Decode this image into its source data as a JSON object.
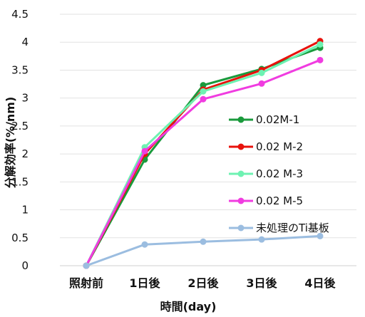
{
  "chart_data": {
    "type": "line",
    "title": "",
    "xlabel": "時間(day)",
    "ylabel": "分解効率(%/nm)",
    "categories": [
      "照射前",
      "1日後",
      "2日後",
      "3日後",
      "4日後"
    ],
    "ylim": [
      0,
      4.5
    ],
    "yticks": [
      "0",
      "0.5",
      "1",
      "1.5",
      "2",
      "2.5",
      "3",
      "3.5",
      "4",
      "4.5"
    ],
    "grid": true,
    "legend_position": "right",
    "series": [
      {
        "name": "0.02M-1",
        "color": "#1a9a3c",
        "values": [
          0,
          1.9,
          3.23,
          3.52,
          3.9
        ]
      },
      {
        "name": "0.02 M-2",
        "color": "#e8120c",
        "values": [
          0,
          2.0,
          3.15,
          3.5,
          4.02
        ]
      },
      {
        "name": "0.02 M-3",
        "color": "#6ef2b2",
        "values": [
          0,
          2.12,
          3.12,
          3.45,
          3.96
        ]
      },
      {
        "name": "0.02 M-5",
        "color": "#f03ce0",
        "values": [
          0,
          2.05,
          2.98,
          3.26,
          3.68
        ]
      },
      {
        "name": "未処理のTi基板",
        "color": "#9bbde0",
        "values": [
          0,
          0.38,
          0.43,
          0.47,
          0.53
        ]
      }
    ]
  }
}
